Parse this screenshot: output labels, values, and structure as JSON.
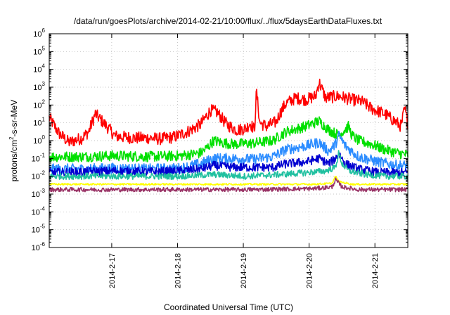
{
  "chart_data": {
    "type": "line",
    "title": "/data/run/goesPlots/archive/2014-02-21/10:00/flux/../flux/5daysEarthDataFluxes.txt",
    "xlabel": "Coordinated Universal Time (UTC)",
    "ylabel_parts": [
      "protons/cm",
      "2",
      "-s-sr-MeV"
    ],
    "y_scale": "log",
    "ylim_exp": [
      -6,
      6
    ],
    "y_ticks": [
      {
        "base": "10",
        "exp": "-6",
        "e": -6
      },
      {
        "base": "10",
        "exp": "-5",
        "e": -5
      },
      {
        "base": "10",
        "exp": "-4",
        "e": -4
      },
      {
        "base": "10",
        "exp": "-3",
        "e": -3
      },
      {
        "base": "10",
        "exp": "-2",
        "e": -2
      },
      {
        "base": "10",
        "exp": "-1",
        "e": -1
      },
      {
        "base": "10",
        "exp": "0",
        "e": 0
      },
      {
        "base": "10",
        "exp": "1",
        "e": 1
      },
      {
        "base": "10",
        "exp": "2",
        "e": 2
      },
      {
        "base": "10",
        "exp": "3",
        "e": 3
      },
      {
        "base": "10",
        "exp": "4",
        "e": 4
      },
      {
        "base": "10",
        "exp": "5",
        "e": 5
      },
      {
        "base": "10",
        "exp": "6",
        "e": 6
      }
    ],
    "xlim_days": [
      0,
      5.45
    ],
    "x_ticks": [
      {
        "label": "2014-2-17",
        "d": 0.95
      },
      {
        "label": "2014-2-18",
        "d": 1.95
      },
      {
        "label": "2014-2-19",
        "d": 2.95
      },
      {
        "label": "2014-2-20",
        "d": 3.95
      },
      {
        "label": "2014-2-21",
        "d": 4.95
      }
    ],
    "grid": true,
    "series": [
      {
        "color": "#ff0000",
        "noise": 0.35,
        "points": [
          [
            0,
            1.3
          ],
          [
            0.15,
            0.4
          ],
          [
            0.3,
            -0.1
          ],
          [
            0.5,
            0.15
          ],
          [
            0.6,
            0.5
          ],
          [
            0.7,
            1.5
          ],
          [
            0.8,
            1.1
          ],
          [
            0.9,
            0.7
          ],
          [
            1.0,
            0.25
          ],
          [
            1.3,
            0.15
          ],
          [
            1.5,
            0.15
          ],
          [
            1.7,
            0.1
          ],
          [
            1.9,
            0.2
          ],
          [
            2.1,
            0.5
          ],
          [
            2.3,
            0.9
          ],
          [
            2.45,
            1.7
          ],
          [
            2.55,
            1.6
          ],
          [
            2.7,
            0.9
          ],
          [
            2.85,
            0.6
          ],
          [
            3.0,
            0.7
          ],
          [
            3.05,
            1.0
          ],
          [
            3.12,
            0.6
          ],
          [
            3.15,
            2.8
          ],
          [
            3.2,
            1.0
          ],
          [
            3.3,
            0.8
          ],
          [
            3.45,
            1.05
          ],
          [
            3.5,
            1.5
          ],
          [
            3.6,
            2.1
          ],
          [
            3.75,
            2.4
          ],
          [
            3.9,
            2.3
          ],
          [
            4.05,
            2.5
          ],
          [
            4.1,
            3.3
          ],
          [
            4.2,
            2.4
          ],
          [
            4.4,
            2.5
          ],
          [
            4.6,
            2.3
          ],
          [
            4.75,
            2.2
          ],
          [
            4.9,
            1.8
          ],
          [
            5.1,
            1.5
          ],
          [
            5.25,
            1.1
          ],
          [
            5.35,
            0.8
          ],
          [
            5.4,
            1.8
          ],
          [
            5.45,
            1.0
          ]
        ]
      },
      {
        "color": "#00e000",
        "noise": 0.3,
        "points": [
          [
            0,
            -0.9
          ],
          [
            0.5,
            -0.9
          ],
          [
            1.0,
            -0.85
          ],
          [
            1.5,
            -0.9
          ],
          [
            2.0,
            -0.85
          ],
          [
            2.3,
            -0.7
          ],
          [
            2.4,
            -0.4
          ],
          [
            2.5,
            0.0
          ],
          [
            2.6,
            -0.1
          ],
          [
            2.8,
            -0.2
          ],
          [
            3.1,
            -0.15
          ],
          [
            3.4,
            0.0
          ],
          [
            3.6,
            0.5
          ],
          [
            3.9,
            0.8
          ],
          [
            4.1,
            1.1
          ],
          [
            4.25,
            0.6
          ],
          [
            4.4,
            0.3
          ],
          [
            4.55,
            0.8
          ],
          [
            4.6,
            0.3
          ],
          [
            4.7,
            0.0
          ],
          [
            4.9,
            -0.2
          ],
          [
            5.1,
            -0.5
          ],
          [
            5.3,
            -0.7
          ],
          [
            5.45,
            -0.8
          ]
        ]
      },
      {
        "color": "#2b8cff",
        "noise": 0.3,
        "points": [
          [
            0,
            -1.6
          ],
          [
            0.5,
            -1.6
          ],
          [
            1.0,
            -1.55
          ],
          [
            1.5,
            -1.6
          ],
          [
            2.0,
            -1.55
          ],
          [
            2.3,
            -1.3
          ],
          [
            2.5,
            -1.0
          ],
          [
            2.8,
            -1.0
          ],
          [
            3.1,
            -1.05
          ],
          [
            3.4,
            -0.9
          ],
          [
            3.6,
            -0.5
          ],
          [
            3.9,
            -0.3
          ],
          [
            4.1,
            -0.1
          ],
          [
            4.25,
            -0.6
          ],
          [
            4.35,
            -0.2
          ],
          [
            4.4,
            0.3
          ],
          [
            4.5,
            -0.3
          ],
          [
            4.7,
            -0.9
          ],
          [
            5.0,
            -1.2
          ],
          [
            5.3,
            -1.4
          ],
          [
            5.45,
            -1.4
          ]
        ]
      },
      {
        "color": "#0000d0",
        "noise": 0.25,
        "points": [
          [
            0,
            -1.8
          ],
          [
            0.5,
            -1.75
          ],
          [
            1.0,
            -1.7
          ],
          [
            1.5,
            -1.75
          ],
          [
            2.0,
            -1.7
          ],
          [
            2.3,
            -1.6
          ],
          [
            2.5,
            -1.4
          ],
          [
            2.8,
            -1.5
          ],
          [
            3.1,
            -1.5
          ],
          [
            3.4,
            -1.5
          ],
          [
            3.6,
            -1.3
          ],
          [
            3.9,
            -1.2
          ],
          [
            4.1,
            -1.0
          ],
          [
            4.25,
            -1.3
          ],
          [
            4.35,
            -1.0
          ],
          [
            4.4,
            -0.7
          ],
          [
            4.5,
            -1.3
          ],
          [
            4.7,
            -1.6
          ],
          [
            5.0,
            -1.8
          ],
          [
            5.3,
            -1.8
          ],
          [
            5.45,
            -1.8
          ]
        ]
      },
      {
        "color": "#20c0a0",
        "noise": 0.18,
        "points": [
          [
            0,
            -2.0
          ],
          [
            0.5,
            -2.0
          ],
          [
            1.0,
            -2.0
          ],
          [
            1.5,
            -2.0
          ],
          [
            2.0,
            -2.0
          ],
          [
            2.5,
            -1.9
          ],
          [
            3.0,
            -2.0
          ],
          [
            3.5,
            -1.9
          ],
          [
            3.9,
            -1.8
          ],
          [
            4.2,
            -1.7
          ],
          [
            4.35,
            -1.5
          ],
          [
            4.4,
            -0.7
          ],
          [
            4.45,
            -1.3
          ],
          [
            4.55,
            -1.7
          ],
          [
            4.8,
            -1.9
          ],
          [
            5.1,
            -2.0
          ],
          [
            5.45,
            -2.0
          ]
        ]
      },
      {
        "color": "#ffff00",
        "noise": 0.05,
        "points": [
          [
            0,
            -2.45
          ],
          [
            1.0,
            -2.45
          ],
          [
            2.0,
            -2.45
          ],
          [
            3.0,
            -2.45
          ],
          [
            4.0,
            -2.45
          ],
          [
            4.3,
            -2.4
          ],
          [
            4.35,
            -2.0
          ],
          [
            4.4,
            -2.3
          ],
          [
            4.6,
            -2.45
          ],
          [
            5.45,
            -2.45
          ]
        ]
      },
      {
        "color": "#993366",
        "noise": 0.12,
        "points": [
          [
            0,
            -2.75
          ],
          [
            1.0,
            -2.75
          ],
          [
            2.0,
            -2.75
          ],
          [
            3.0,
            -2.75
          ],
          [
            4.0,
            -2.7
          ],
          [
            4.3,
            -2.6
          ],
          [
            4.35,
            -2.2
          ],
          [
            4.45,
            -2.6
          ],
          [
            4.7,
            -2.75
          ],
          [
            5.45,
            -2.75
          ]
        ]
      }
    ]
  }
}
